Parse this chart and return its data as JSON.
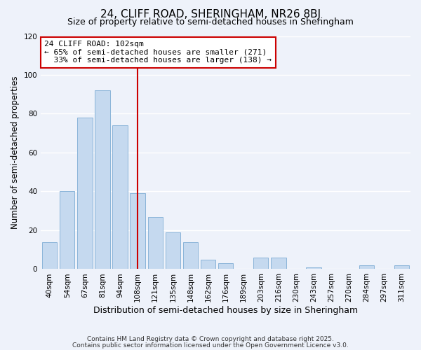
{
  "title": "24, CLIFF ROAD, SHERINGHAM, NR26 8BJ",
  "subtitle": "Size of property relative to semi-detached houses in Sheringham",
  "xlabel": "Distribution of semi-detached houses by size in Sheringham",
  "ylabel": "Number of semi-detached properties",
  "bin_labels": [
    "40sqm",
    "54sqm",
    "67sqm",
    "81sqm",
    "94sqm",
    "108sqm",
    "121sqm",
    "135sqm",
    "148sqm",
    "162sqm",
    "176sqm",
    "189sqm",
    "203sqm",
    "216sqm",
    "230sqm",
    "243sqm",
    "257sqm",
    "270sqm",
    "284sqm",
    "297sqm",
    "311sqm"
  ],
  "bar_values": [
    14,
    40,
    78,
    92,
    74,
    39,
    27,
    19,
    14,
    5,
    3,
    0,
    6,
    6,
    0,
    1,
    0,
    0,
    2,
    0,
    2
  ],
  "bar_color": "#c5d9ef",
  "bar_edge_color": "#8ab4d9",
  "vline_x": 5,
  "vline_color": "#cc0000",
  "annotation_line1": "24 CLIFF ROAD: 102sqm",
  "annotation_line2": "← 65% of semi-detached houses are smaller (271)",
  "annotation_line3": "  33% of semi-detached houses are larger (138) →",
  "annotation_box_color": "#ffffff",
  "annotation_box_edge": "#cc0000",
  "ylim": [
    0,
    120
  ],
  "yticks": [
    0,
    20,
    40,
    60,
    80,
    100,
    120
  ],
  "background_color": "#eef2fa",
  "grid_color": "#ffffff",
  "footer_line1": "Contains HM Land Registry data © Crown copyright and database right 2025.",
  "footer_line2": "Contains public sector information licensed under the Open Government Licence v3.0.",
  "title_fontsize": 11,
  "subtitle_fontsize": 9,
  "xlabel_fontsize": 9,
  "ylabel_fontsize": 8.5,
  "tick_fontsize": 7.5,
  "annotation_fontsize": 8,
  "footer_fontsize": 6.5
}
